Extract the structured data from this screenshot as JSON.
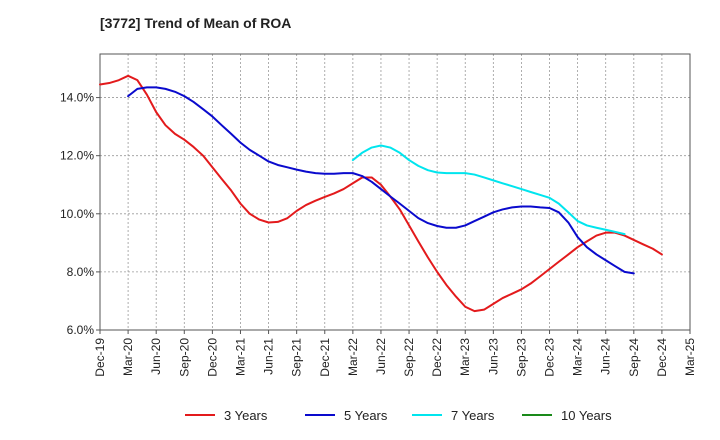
{
  "chart_data": {
    "type": "line",
    "title": "[3772]  Trend of Mean of ROA",
    "xlabel": "",
    "ylabel": "",
    "x_ticks": [
      "Dec-19",
      "Mar-20",
      "Jun-20",
      "Sep-20",
      "Dec-20",
      "Mar-21",
      "Jun-21",
      "Sep-21",
      "Dec-21",
      "Mar-22",
      "Jun-22",
      "Sep-22",
      "Dec-22",
      "Mar-23",
      "Jun-23",
      "Sep-23",
      "Dec-23",
      "Mar-24",
      "Jun-24",
      "Sep-24",
      "Dec-24",
      "Mar-25"
    ],
    "y_ticks": [
      "6.0%",
      "8.0%",
      "10.0%",
      "12.0%",
      "14.0%"
    ],
    "y_tick_values": [
      6,
      8,
      10,
      12,
      14
    ],
    "ylim": [
      6,
      15.5
    ],
    "grid": true,
    "legend_position": "bottom",
    "series": [
      {
        "name": "3 Years",
        "color": "#e31a1c",
        "values": [
          [
            0,
            14.45
          ],
          [
            0.33,
            14.5
          ],
          [
            0.67,
            14.6
          ],
          [
            1,
            14.75
          ],
          [
            1.33,
            14.6
          ],
          [
            1.67,
            14.1
          ],
          [
            2,
            13.5
          ],
          [
            2.33,
            13.05
          ],
          [
            2.67,
            12.75
          ],
          [
            3,
            12.55
          ],
          [
            3.33,
            12.3
          ],
          [
            3.67,
            12.0
          ],
          [
            4,
            11.6
          ],
          [
            4.33,
            11.2
          ],
          [
            4.67,
            10.8
          ],
          [
            5,
            10.35
          ],
          [
            5.33,
            10.0
          ],
          [
            5.67,
            9.8
          ],
          [
            6,
            9.7
          ],
          [
            6.33,
            9.72
          ],
          [
            6.67,
            9.85
          ],
          [
            7,
            10.1
          ],
          [
            7.33,
            10.3
          ],
          [
            7.67,
            10.45
          ],
          [
            8,
            10.58
          ],
          [
            8.33,
            10.7
          ],
          [
            8.67,
            10.85
          ],
          [
            9,
            11.05
          ],
          [
            9.33,
            11.25
          ],
          [
            9.67,
            11.25
          ],
          [
            10,
            11.0
          ],
          [
            10.33,
            10.6
          ],
          [
            10.67,
            10.15
          ],
          [
            11,
            9.6
          ],
          [
            11.33,
            9.05
          ],
          [
            11.67,
            8.5
          ],
          [
            12,
            8.0
          ],
          [
            12.33,
            7.55
          ],
          [
            12.67,
            7.15
          ],
          [
            13,
            6.8
          ],
          [
            13.33,
            6.65
          ],
          [
            13.67,
            6.7
          ],
          [
            14,
            6.9
          ],
          [
            14.33,
            7.1
          ],
          [
            14.67,
            7.25
          ],
          [
            15,
            7.4
          ],
          [
            15.33,
            7.6
          ],
          [
            15.67,
            7.85
          ],
          [
            16,
            8.1
          ],
          [
            16.33,
            8.35
          ],
          [
            16.67,
            8.6
          ],
          [
            17,
            8.85
          ],
          [
            17.33,
            9.05
          ],
          [
            17.67,
            9.25
          ],
          [
            18,
            9.35
          ],
          [
            18.33,
            9.35
          ],
          [
            18.67,
            9.25
          ],
          [
            19,
            9.1
          ],
          [
            19.33,
            8.95
          ],
          [
            19.67,
            8.8
          ],
          [
            20,
            8.6
          ]
        ]
      },
      {
        "name": "5 Years",
        "color": "#0a0acd",
        "values": [
          [
            1,
            14.05
          ],
          [
            1.33,
            14.3
          ],
          [
            1.67,
            14.35
          ],
          [
            2,
            14.35
          ],
          [
            2.33,
            14.3
          ],
          [
            2.67,
            14.2
          ],
          [
            3,
            14.05
          ],
          [
            3.33,
            13.85
          ],
          [
            3.67,
            13.6
          ],
          [
            4,
            13.35
          ],
          [
            4.33,
            13.05
          ],
          [
            4.67,
            12.75
          ],
          [
            5,
            12.45
          ],
          [
            5.33,
            12.2
          ],
          [
            5.67,
            12.0
          ],
          [
            6,
            11.8
          ],
          [
            6.33,
            11.68
          ],
          [
            6.67,
            11.6
          ],
          [
            7,
            11.52
          ],
          [
            7.33,
            11.45
          ],
          [
            7.67,
            11.4
          ],
          [
            8,
            11.38
          ],
          [
            8.33,
            11.38
          ],
          [
            8.67,
            11.4
          ],
          [
            9,
            11.4
          ],
          [
            9.33,
            11.3
          ],
          [
            9.67,
            11.1
          ],
          [
            10,
            10.85
          ],
          [
            10.33,
            10.6
          ],
          [
            10.67,
            10.35
          ],
          [
            11,
            10.1
          ],
          [
            11.33,
            9.85
          ],
          [
            11.67,
            9.68
          ],
          [
            12,
            9.58
          ],
          [
            12.33,
            9.52
          ],
          [
            12.67,
            9.52
          ],
          [
            13,
            9.6
          ],
          [
            13.33,
            9.75
          ],
          [
            13.67,
            9.9
          ],
          [
            14,
            10.05
          ],
          [
            14.33,
            10.15
          ],
          [
            14.67,
            10.22
          ],
          [
            15,
            10.25
          ],
          [
            15.33,
            10.25
          ],
          [
            15.67,
            10.22
          ],
          [
            16,
            10.2
          ],
          [
            16.33,
            10.05
          ],
          [
            16.67,
            9.7
          ],
          [
            17,
            9.2
          ],
          [
            17.33,
            8.85
          ],
          [
            17.67,
            8.6
          ],
          [
            18,
            8.4
          ],
          [
            18.33,
            8.2
          ],
          [
            18.67,
            8.0
          ],
          [
            19,
            7.95
          ]
        ]
      },
      {
        "name": "7 Years",
        "color": "#00e5ee",
        "values": [
          [
            9,
            11.85
          ],
          [
            9.33,
            12.1
          ],
          [
            9.67,
            12.28
          ],
          [
            10,
            12.35
          ],
          [
            10.33,
            12.28
          ],
          [
            10.67,
            12.1
          ],
          [
            11,
            11.85
          ],
          [
            11.33,
            11.65
          ],
          [
            11.67,
            11.5
          ],
          [
            12,
            11.42
          ],
          [
            12.33,
            11.4
          ],
          [
            12.67,
            11.4
          ],
          [
            13,
            11.4
          ],
          [
            13.33,
            11.35
          ],
          [
            13.67,
            11.25
          ],
          [
            14,
            11.15
          ],
          [
            14.33,
            11.05
          ],
          [
            14.67,
            10.95
          ],
          [
            15,
            10.85
          ],
          [
            15.33,
            10.75
          ],
          [
            15.67,
            10.65
          ],
          [
            16,
            10.55
          ],
          [
            16.33,
            10.35
          ],
          [
            16.67,
            10.05
          ],
          [
            17,
            9.75
          ],
          [
            17.33,
            9.6
          ],
          [
            17.67,
            9.52
          ],
          [
            18,
            9.45
          ],
          [
            18.33,
            9.38
          ],
          [
            18.67,
            9.3
          ]
        ]
      },
      {
        "name": "10 Years",
        "color": "#1a8a1a",
        "values": []
      }
    ]
  }
}
